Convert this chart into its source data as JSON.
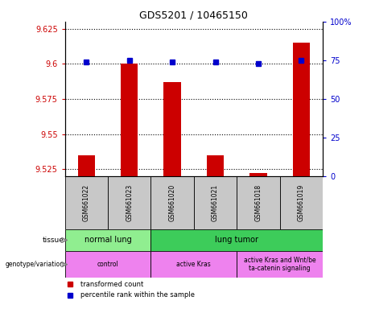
{
  "title": "GDS5201 / 10465150",
  "samples": [
    "GSM661022",
    "GSM661023",
    "GSM661020",
    "GSM661021",
    "GSM661018",
    "GSM661019"
  ],
  "red_values": [
    9.535,
    9.6,
    9.587,
    9.535,
    9.522,
    9.615
  ],
  "blue_values": [
    74,
    75,
    74,
    74,
    73,
    75
  ],
  "ylim_left": [
    9.52,
    9.63
  ],
  "ylim_right": [
    0,
    100
  ],
  "yticks_left": [
    9.525,
    9.55,
    9.575,
    9.6,
    9.625
  ],
  "yticks_right": [
    0,
    25,
    50,
    75,
    100
  ],
  "ytick_labels_left": [
    "9.525",
    "9.55",
    "9.575",
    "9.6",
    "9.625"
  ],
  "ytick_labels_right": [
    "0",
    "25",
    "50",
    "75",
    "100%"
  ],
  "tissue_groups": [
    {
      "label": "normal lung",
      "start": 0,
      "end": 2,
      "color": "#90EE90"
    },
    {
      "label": "lung tumor",
      "start": 2,
      "end": 6,
      "color": "#3DCC5A"
    }
  ],
  "genotype_groups": [
    {
      "label": "control",
      "start": 0,
      "end": 2,
      "color": "#EE82EE"
    },
    {
      "label": "active Kras",
      "start": 2,
      "end": 4,
      "color": "#EE82EE"
    },
    {
      "label": "active Kras and Wnt/be\nta-catenin signaling",
      "start": 4,
      "end": 6,
      "color": "#EE82EE"
    }
  ],
  "bar_color": "#CC0000",
  "dot_color": "#0000CC",
  "bar_width": 0.4,
  "dot_size": 20,
  "left_axis_color": "#CC0000",
  "right_axis_color": "#0000CC",
  "sample_bg_color": "#C8C8C8",
  "legend_red_label": "transformed count",
  "legend_blue_label": "percentile rank within the sample"
}
